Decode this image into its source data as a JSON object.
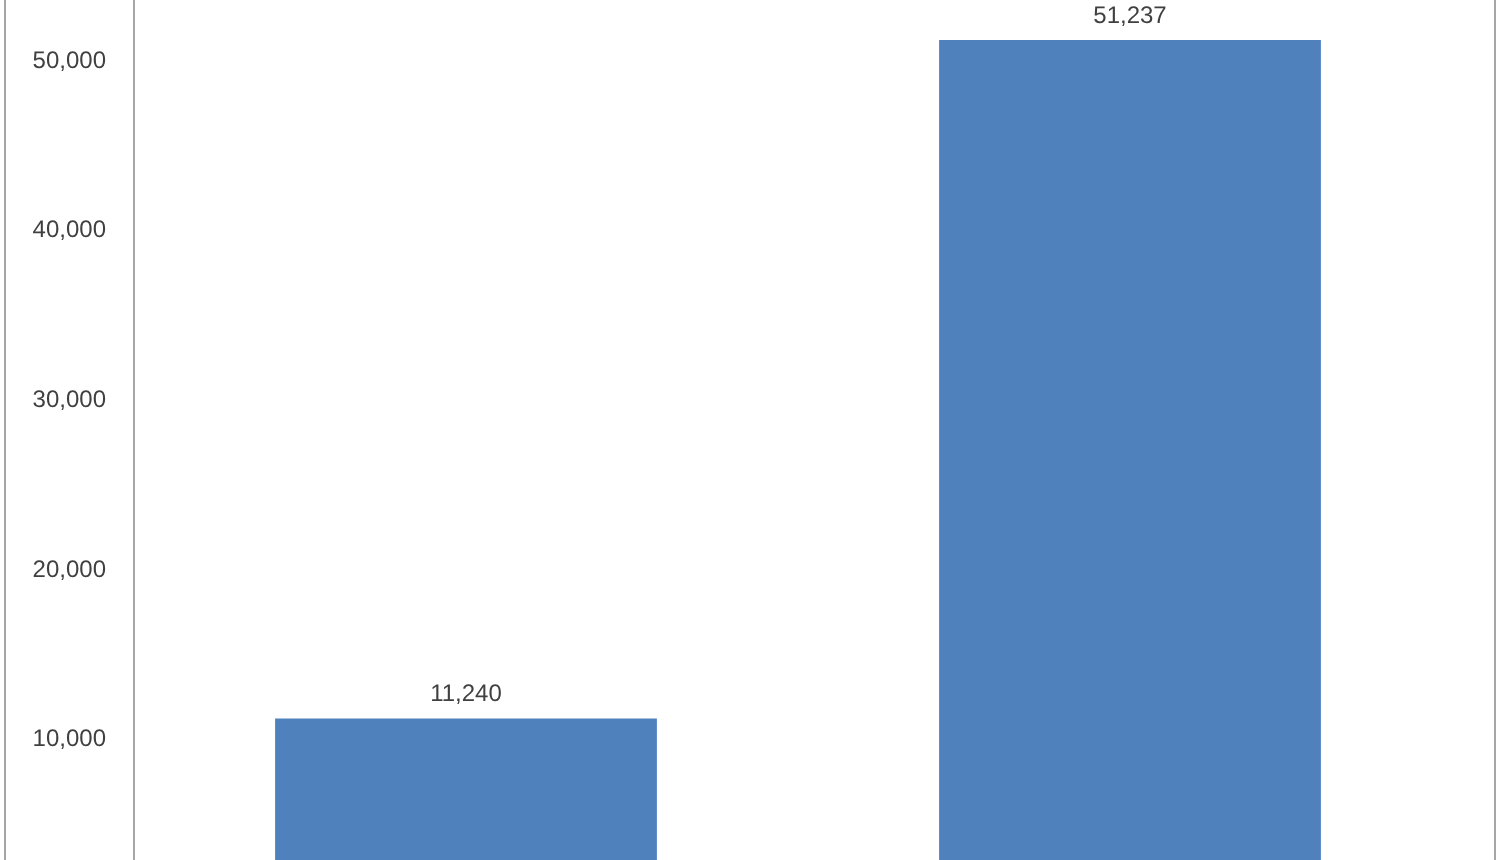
{
  "chart_data": {
    "type": "bar",
    "categories": [
      null,
      null
    ],
    "values": [
      11240,
      51237
    ],
    "color": "#4f81bd",
    "value_labels": [
      "11,240",
      "51,237"
    ],
    "ylim": [
      2900,
      53600
    ],
    "yticks": [
      {
        "value": 10000,
        "label": "10,000"
      },
      {
        "value": 20000,
        "label": "20,000"
      },
      {
        "value": 30000,
        "label": "30,000"
      },
      {
        "value": 40000,
        "label": "40,000"
      },
      {
        "value": 50000,
        "label": "50,000"
      }
    ],
    "grid": false,
    "tick_labels": "y"
  }
}
